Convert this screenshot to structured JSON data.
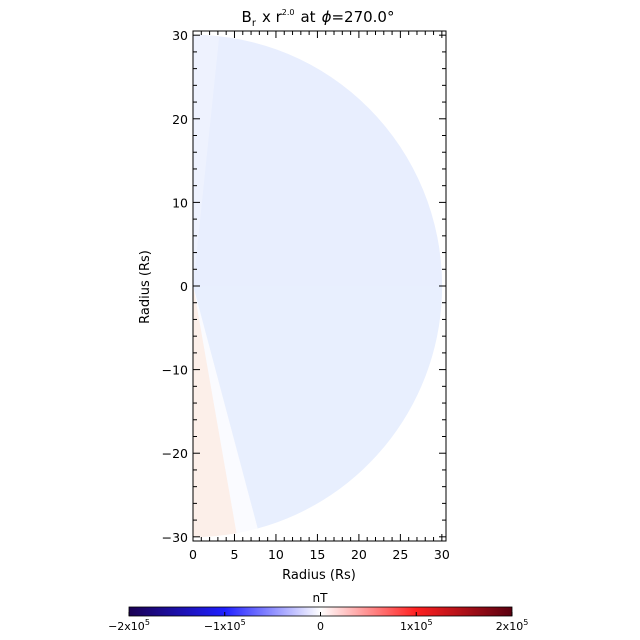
{
  "chart_data": {
    "type": "heatmap",
    "title": {
      "quantity": "B",
      "quantity_subscript": "r",
      "multiplier": "x r",
      "multiplier_exponent": "2.0",
      "at_text": "at",
      "phi_symbol": "ϕ",
      "phi_value": "=270.0°"
    },
    "xlabel": "Radius (Rs)",
    "ylabel": "Radius (Rs)",
    "xlim": [
      0,
      30.5
    ],
    "ylim": [
      -30.5,
      30.5
    ],
    "x_ticks": [
      0,
      5,
      10,
      15,
      20,
      25,
      30
    ],
    "x_tick_labels": [
      "0",
      "5",
      "10",
      "15",
      "20",
      "25",
      "30"
    ],
    "y_ticks": [
      -30,
      -20,
      -10,
      0,
      10,
      20,
      30
    ],
    "y_tick_labels": [
      "−30",
      "−20",
      "−10",
      "0",
      "10",
      "20",
      "30"
    ],
    "x_minor_step": 1,
    "y_minor_step": 2,
    "domain": {
      "shape": "half-disk",
      "outer_radius": 30
    },
    "field_regions": [
      {
        "name": "upper-half",
        "theta_deg": [
          0,
          90
        ],
        "value_nT": -11000.0,
        "color": "#e8eefe"
      },
      {
        "name": "polar-north",
        "theta_deg": [
          0,
          6
        ],
        "value_nT": -6000.0,
        "color": "#eef2fe"
      },
      {
        "name": "lower-half",
        "theta_deg": [
          90,
          165
        ],
        "value_nT": -10000.0,
        "color": "#e8effe"
      },
      {
        "name": "transition",
        "theta_deg": [
          165,
          170
        ],
        "value_nT": 0,
        "color": "#fafbff"
      },
      {
        "name": "south-wedge",
        "theta_deg": [
          170,
          180
        ],
        "value_nT": 5000.0,
        "color": "#fcefe9"
      }
    ],
    "colorbar": {
      "unit": "nT",
      "range": [
        -200000,
        200000
      ],
      "ticks": [
        -200000,
        -100000,
        0,
        100000,
        200000
      ],
      "tick_labels": [
        "−2x10",
        "−1x10",
        "0",
        "1x10",
        "2x10"
      ],
      "tick_exponents": [
        "5",
        "5",
        "",
        "5",
        "5"
      ],
      "colors": [
        "#1a0052",
        "#1f1fff",
        "#ffffff",
        "#ff2020",
        "#5a0010"
      ]
    }
  }
}
